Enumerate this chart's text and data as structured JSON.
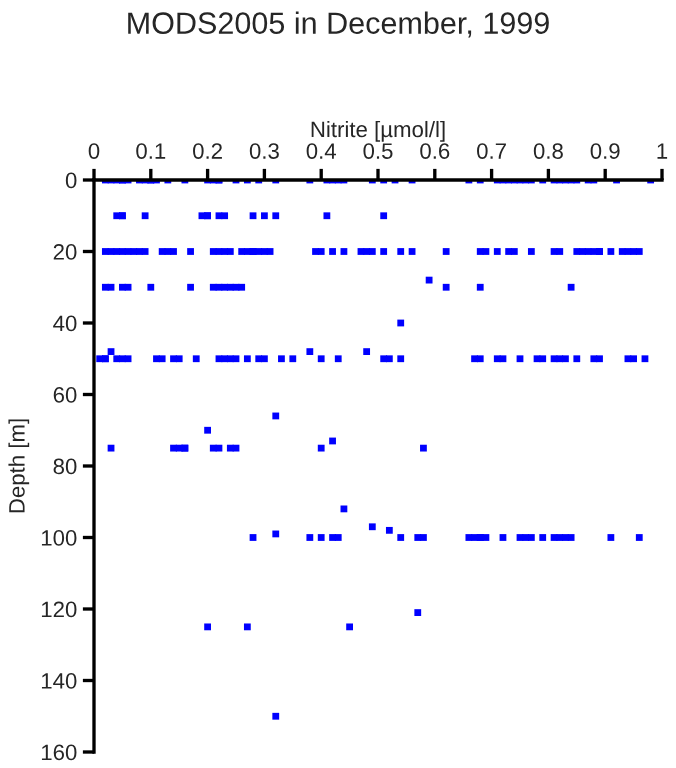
{
  "chart_data": {
    "type": "scatter",
    "title": "MODS2005 in December, 1999",
    "xlabel": "Nitrite [µmol/l]",
    "ylabel": "Depth [m]",
    "series": [
      {
        "color": "#0000ff",
        "x": [
          0.02,
          0.03,
          0.04,
          0.05,
          0.05,
          0.06,
          0.08,
          0.09,
          0.1,
          0.1,
          0.11,
          0.13,
          0.16,
          0.2,
          0.21,
          0.22,
          0.22,
          0.25,
          0.27,
          0.29,
          0.32,
          0.38,
          0.41,
          0.42,
          0.43,
          0.44,
          0.49,
          0.51,
          0.53,
          0.56,
          0.66,
          0.68,
          0.71,
          0.72,
          0.73,
          0.74,
          0.75,
          0.76,
          0.77,
          0.79,
          0.81,
          0.82,
          0.83,
          0.84,
          0.85,
          0.87,
          0.88,
          0.92,
          0.98,
          0.04,
          0.05,
          0.05,
          0.09,
          0.19,
          0.2,
          0.2,
          0.22,
          0.23,
          0.28,
          0.3,
          0.32,
          0.41,
          0.51,
          0.02,
          0.03,
          0.04,
          0.05,
          0.06,
          0.07,
          0.08,
          0.09,
          0.12,
          0.13,
          0.14,
          0.17,
          0.21,
          0.22,
          0.23,
          0.24,
          0.26,
          0.27,
          0.28,
          0.28,
          0.29,
          0.3,
          0.31,
          0.39,
          0.4,
          0.42,
          0.44,
          0.47,
          0.48,
          0.49,
          0.51,
          0.54,
          0.56,
          0.62,
          0.68,
          0.69,
          0.71,
          0.73,
          0.74,
          0.77,
          0.81,
          0.82,
          0.85,
          0.86,
          0.87,
          0.88,
          0.89,
          0.89,
          0.91,
          0.93,
          0.94,
          0.95,
          0.96,
          0.02,
          0.03,
          0.05,
          0.06,
          0.1,
          0.17,
          0.21,
          0.22,
          0.23,
          0.24,
          0.25,
          0.26,
          0.62,
          0.68,
          0.84,
          0.59,
          0.01,
          0.02,
          0.02,
          0.03,
          0.04,
          0.05,
          0.06,
          0.11,
          0.12,
          0.14,
          0.15,
          0.18,
          0.22,
          0.23,
          0.24,
          0.25,
          0.27,
          0.29,
          0.3,
          0.33,
          0.35,
          0.38,
          0.4,
          0.43,
          0.48,
          0.51,
          0.52,
          0.54,
          0.54,
          0.67,
          0.68,
          0.71,
          0.72,
          0.75,
          0.78,
          0.79,
          0.81,
          0.82,
          0.83,
          0.85,
          0.88,
          0.89,
          0.94,
          0.95,
          0.97,
          0.03,
          0.14,
          0.15,
          0.16,
          0.16,
          0.2,
          0.21,
          0.22,
          0.24,
          0.25,
          0.32,
          0.4,
          0.42,
          0.58,
          0.28,
          0.32,
          0.38,
          0.4,
          0.42,
          0.43,
          0.54,
          0.57,
          0.58,
          0.66,
          0.67,
          0.68,
          0.68,
          0.69,
          0.72,
          0.75,
          0.76,
          0.77,
          0.79,
          0.81,
          0.82,
          0.83,
          0.84,
          0.91,
          0.96,
          0.44,
          0.49,
          0.52,
          0.2,
          0.27,
          0.45,
          0.57,
          0.32
        ],
        "values": [
          0,
          0,
          0,
          0,
          0,
          0,
          0,
          0,
          0,
          0,
          0,
          0,
          0,
          0,
          0,
          0,
          0,
          0,
          0,
          0,
          0,
          0,
          0,
          0,
          0,
          0,
          0,
          0,
          0,
          0,
          0,
          0,
          0,
          0,
          0,
          0,
          0,
          0,
          0,
          0,
          0,
          0,
          0,
          0,
          0,
          0,
          0,
          0,
          0,
          10,
          10,
          10,
          10,
          10,
          10,
          10,
          10,
          10,
          10,
          10,
          10,
          10,
          10,
          20,
          20,
          20,
          20,
          20,
          20,
          20,
          20,
          20,
          20,
          20,
          20,
          20,
          20,
          20,
          20,
          20,
          20,
          20,
          20,
          20,
          20,
          20,
          20,
          20,
          20,
          20,
          20,
          20,
          20,
          20,
          20,
          20,
          20,
          20,
          20,
          20,
          20,
          20,
          20,
          20,
          20,
          20,
          20,
          20,
          20,
          20,
          20,
          20,
          20,
          20,
          20,
          20,
          30,
          30,
          30,
          30,
          30,
          30,
          30,
          30,
          30,
          30,
          30,
          30,
          30,
          30,
          30,
          28,
          50,
          50,
          50,
          48,
          50,
          50,
          50,
          50,
          50,
          50,
          50,
          50,
          50,
          50,
          50,
          50,
          50,
          50,
          50,
          50,
          50,
          48,
          50,
          50,
          48,
          50,
          50,
          50,
          40,
          50,
          50,
          50,
          50,
          50,
          50,
          50,
          50,
          50,
          50,
          50,
          50,
          50,
          50,
          50,
          50,
          75,
          75,
          75,
          75,
          75,
          70,
          75,
          75,
          75,
          75,
          66,
          75,
          73,
          75,
          100,
          99,
          100,
          100,
          100,
          100,
          100,
          100,
          100,
          100,
          100,
          100,
          100,
          100,
          100,
          100,
          100,
          100,
          100,
          100,
          100,
          100,
          100,
          100,
          100,
          92,
          97,
          98,
          125,
          125,
          125,
          121,
          150
        ]
      }
    ],
    "xlim": [
      0,
      1
    ],
    "xticks": [
      0,
      {
        "value": 0.1,
        "label": "0.1"
      },
      {
        "value": 0.2,
        "label": "0.2"
      },
      {
        "value": 0.3,
        "label": "0.3"
      },
      {
        "value": 0.4,
        "label": "0.4"
      },
      {
        "value": 0.5,
        "label": "0.5"
      },
      {
        "value": 0.6,
        "label": "0.6"
      },
      {
        "value": 0.7,
        "label": "0.7"
      },
      {
        "value": 0.8,
        "label": "0.8"
      },
      {
        "value": 0.9,
        "label": "0.9"
      },
      1
    ],
    "ylim": [
      160,
      0
    ],
    "yticks": [
      0,
      20,
      40,
      60,
      80,
      100,
      120,
      140,
      160
    ],
    "marker": "square",
    "grid": false
  }
}
